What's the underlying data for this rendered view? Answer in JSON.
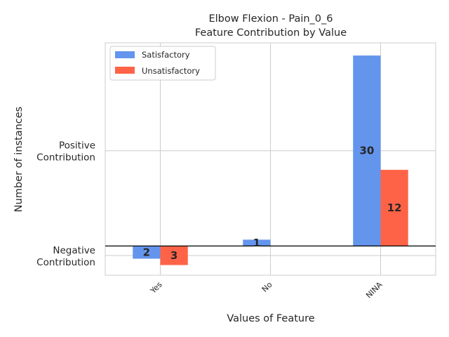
{
  "chart_data": {
    "type": "bar",
    "title": "Elbow Flexion - Pain_0_6",
    "subtitle": "Feature Contribution by Value",
    "xlabel": "Values of Feature",
    "ylabel": "Number of instances",
    "categories": [
      "Yes",
      "No",
      "NINA"
    ],
    "y_tick_labels": [
      "Negative\nContribution",
      "Positive\nContribution"
    ],
    "series": [
      {
        "name": "Satisfactory",
        "color": "#6495ed",
        "values": [
          -2,
          1,
          30
        ],
        "labels": [
          "2",
          "1",
          "30"
        ]
      },
      {
        "name": "Unsatisfactory",
        "color": "#ff6347",
        "values": [
          -3,
          0,
          12
        ],
        "labels": [
          "3",
          "",
          "12"
        ]
      }
    ],
    "ylim": [
      -4.6,
      32.0
    ],
    "grid": true,
    "legend_position": "top-left",
    "zero_line": true
  }
}
